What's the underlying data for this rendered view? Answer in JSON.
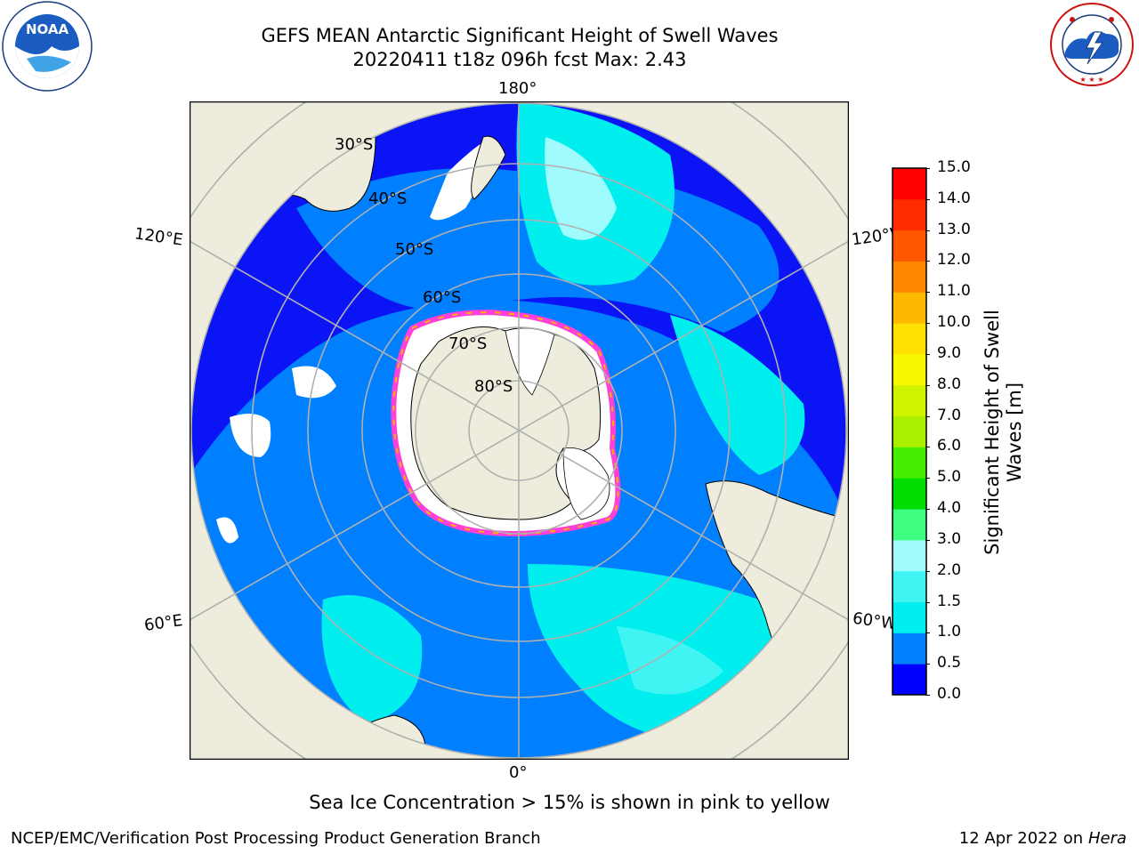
{
  "header": {
    "title_line1": "GEFS MEAN Antarctic Significant Height of Swell Waves",
    "title_line2": "20220411 t18z 096h fcst   Max: 2.43"
  },
  "logos": {
    "noaa_text": "NOAA",
    "noaa_ring_text": "NATIONAL OCEANIC AND ATMOSPHERIC ADMINISTRATION · U.S. DEPARTMENT OF COMMERCE",
    "nws_ring_text": "NATIONAL WEATHER SERVICE"
  },
  "map": {
    "projection": "south polar stereographic",
    "longitude_labels": {
      "top": "180°",
      "bottom": "0°",
      "left_upper": "120°E",
      "left_lower": "60°E",
      "right_upper": "120°W",
      "right_lower": "60°W"
    },
    "latitude_labels": [
      "30°S",
      "40°S",
      "50°S",
      "60°S",
      "70°S",
      "80°S"
    ],
    "colors": {
      "land": "#eeecdc",
      "ice_shelf": "#ffffff",
      "grid": "#b0b0b0",
      "coast": "#000000",
      "sea_ice_edge": [
        "#ff3fd8",
        "#ffb400"
      ]
    }
  },
  "colorbar": {
    "label_line1": "Significant Height of Swell",
    "label_line2": "Waves [m]",
    "ticks": [
      "0.0",
      "0.5",
      "1.0",
      "1.5",
      "2.0",
      "3.0",
      "4.0",
      "5.0",
      "6.0",
      "7.0",
      "8.0",
      "9.0",
      "10.0",
      "11.0",
      "12.0",
      "13.0",
      "14.0",
      "15.0"
    ],
    "bin_colors": [
      "#0000ff",
      "#0080ff",
      "#00eeee",
      "#40f4f4",
      "#a0fcfc",
      "#40ff80",
      "#00dd00",
      "#44ee00",
      "#a8f000",
      "#d0f400",
      "#f8f800",
      "#ffe000",
      "#ffb800",
      "#ff8800",
      "#ff5800",
      "#ff2c00",
      "#ff0000"
    ]
  },
  "footer": {
    "note": "Sea Ice Concentration > 15% is shown in pink to yellow",
    "credit": "NCEP/EMC/Verification Post Processing Product Generation Branch",
    "date": "12 Apr 2022 on",
    "host": "Hera"
  }
}
